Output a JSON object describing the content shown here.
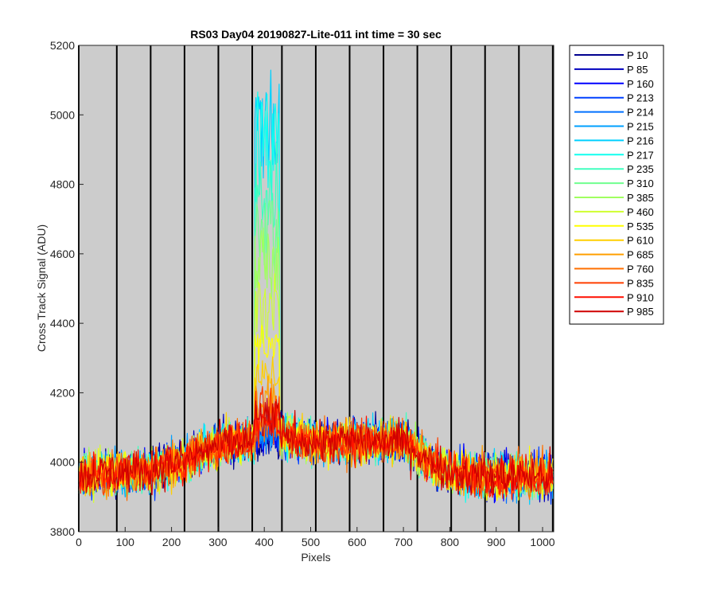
{
  "chart_data": {
    "type": "line",
    "title": "RS03 Day04 20190827-Lite-011 int time = 30 sec",
    "xlabel": "Pixels",
    "ylabel": "Cross Track Signal (ADU)",
    "xlim": [
      0,
      1024
    ],
    "ylim": [
      3800,
      5200
    ],
    "xticks": [
      0,
      100,
      200,
      300,
      400,
      500,
      600,
      700,
      800,
      900,
      1000
    ],
    "yticks": [
      3800,
      4000,
      4200,
      4400,
      4600,
      4800,
      5000,
      5200
    ],
    "background_color": "#cccccc",
    "grid": false,
    "vertical_markers": [
      0,
      82,
      155,
      228,
      301,
      374,
      438,
      511,
      584,
      657,
      730,
      803,
      876,
      949,
      1022
    ],
    "baseline_profile": {
      "x": [
        0,
        50,
        150,
        220,
        300,
        374,
        420,
        438,
        500,
        600,
        700,
        750,
        800,
        900,
        1000,
        1024
      ],
      "y": [
        3960,
        3970,
        3975,
        4000,
        4050,
        4060,
        4100,
        4080,
        4060,
        4060,
        4060,
        4010,
        3970,
        3960,
        3960,
        3960
      ]
    },
    "peak_region": {
      "x_start": 380,
      "x_end": 432
    },
    "series": [
      {
        "name": "P 10",
        "color": "#00008f",
        "peak": 4060
      },
      {
        "name": "P 85",
        "color": "#0000bf",
        "peak": 4060
      },
      {
        "name": "P 160",
        "color": "#0000ff",
        "peak": 4080
      },
      {
        "name": "P 213",
        "color": "#0040ff",
        "peak": 4080
      },
      {
        "name": "P 214",
        "color": "#0070ff",
        "peak": 4090
      },
      {
        "name": "P 215",
        "color": "#00a0ff",
        "peak": 4100
      },
      {
        "name": "P 216",
        "color": "#00d0ff",
        "peak": 5150
      },
      {
        "name": "P 217",
        "color": "#10ffef",
        "peak": 5050
      },
      {
        "name": "P 235",
        "color": "#40ffbf",
        "peak": 4900
      },
      {
        "name": "P 310",
        "color": "#70ff8f",
        "peak": 4750
      },
      {
        "name": "P 385",
        "color": "#a0ff60",
        "peak": 4650
      },
      {
        "name": "P 460",
        "color": "#d0ff30",
        "peak": 4500
      },
      {
        "name": "P 535",
        "color": "#ffff00",
        "peak": 4380
      },
      {
        "name": "P 610",
        "color": "#ffcf00",
        "peak": 4270
      },
      {
        "name": "P 685",
        "color": "#ff9f00",
        "peak": 4220
      },
      {
        "name": "P 760",
        "color": "#ff6f00",
        "peak": 4200
      },
      {
        "name": "P 835",
        "color": "#ff3f00",
        "peak": 4180
      },
      {
        "name": "P 910",
        "color": "#ff0f00",
        "peak": 4170
      },
      {
        "name": "P 985",
        "color": "#cf0000",
        "peak": 4160
      }
    ],
    "noise_amplitude": 55,
    "legend_position": "outside-right-top"
  }
}
